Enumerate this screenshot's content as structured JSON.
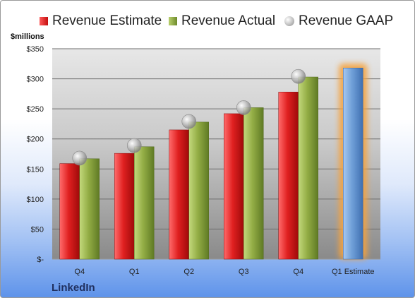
{
  "company": "LinkedIn",
  "unit_label": "$millions",
  "legend": {
    "estimate": "Revenue Estimate",
    "actual": "Revenue Actual",
    "gaap": "Revenue GAAP"
  },
  "colors": {
    "estimate": "#d11a1a",
    "actual": "#8aa63c",
    "gaap": "#a0a0a0",
    "forecast": "#6f9fd8",
    "forecast_glow": "#f5a23c"
  },
  "chart_data": {
    "type": "bar",
    "title": "",
    "xlabel": "",
    "ylabel": "$millions",
    "ylim": [
      0,
      350
    ],
    "grid": true,
    "legend_position": "top",
    "categories": [
      "Q4",
      "Q1",
      "Q2",
      "Q3",
      "Q4",
      "Q1 Estimate"
    ],
    "y_ticks": [
      0,
      50,
      100,
      150,
      200,
      250,
      300,
      350
    ],
    "y_tick_labels": [
      "$-",
      "$50",
      "$100",
      "$150",
      "$200",
      "$250",
      "$300",
      "$350"
    ],
    "series": [
      {
        "name": "Revenue Estimate",
        "type": "bar",
        "values": [
          159,
          176,
          215,
          242,
          278,
          null
        ]
      },
      {
        "name": "Revenue Actual",
        "type": "bar",
        "values": [
          167,
          187,
          228,
          252,
          303,
          null
        ]
      },
      {
        "name": "Revenue GAAP",
        "type": "scatter",
        "values": [
          168,
          189,
          229,
          252,
          304,
          null
        ]
      }
    ],
    "estimate_bar": {
      "category": "Q1 Estimate",
      "value": 318
    }
  }
}
